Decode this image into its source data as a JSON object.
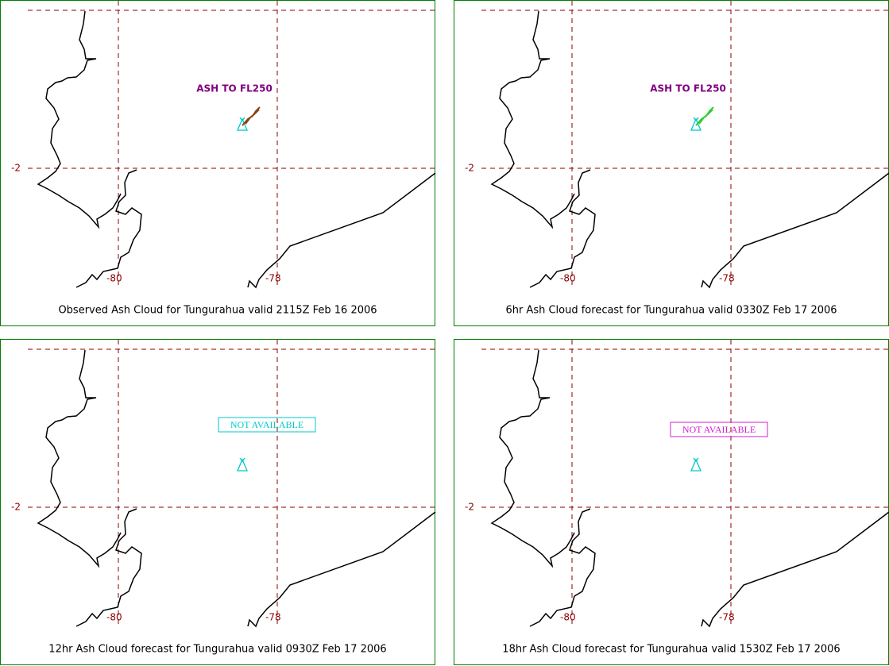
{
  "panels": [
    {
      "caption": "Observed Ash Cloud for Tungurahua valid 2115Z Feb 16 2006",
      "annotation": "ASH TO FL250",
      "lat_label": "-2",
      "lon_labels": [
        "-80",
        "-78"
      ]
    },
    {
      "caption": "6hr Ash Cloud forecast for Tungurahua valid 0330Z Feb 17 2006",
      "annotation": "ASH TO FL250",
      "lat_label": "-2",
      "lon_labels": [
        "-80",
        "-78"
      ]
    },
    {
      "caption": "12hr Ash Cloud forecast for Tungurahua valid 0930Z Feb 17 2006",
      "annotation": "NOT AVAILABLE",
      "lat_label": "-2",
      "lon_labels": [
        "-80",
        "-78"
      ]
    },
    {
      "caption": "18hr Ash Cloud forecast for Tungurahua valid 1530Z Feb 17 2006",
      "annotation": "NOT AVAILABLE",
      "lat_label": "-2",
      "lon_labels": [
        "-80",
        "-78"
      ]
    }
  ]
}
